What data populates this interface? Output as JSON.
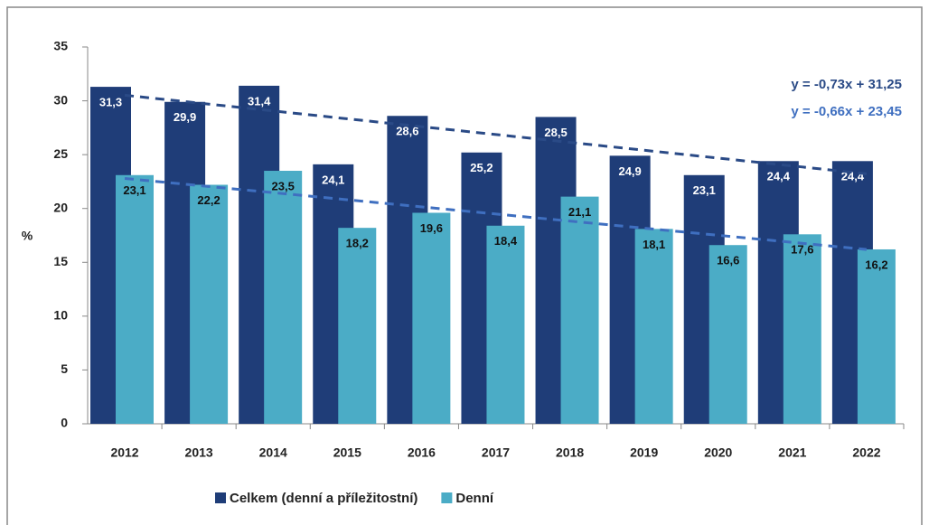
{
  "chart_data": {
    "type": "bar",
    "y_label": "%",
    "categories": [
      "2012",
      "2013",
      "2014",
      "2015",
      "2016",
      "2017",
      "2018",
      "2019",
      "2020",
      "2021",
      "2022"
    ],
    "series": [
      {
        "name": "Celkem (denní a příležitostní)",
        "color": "#1f3d78",
        "values": [
          31.3,
          29.9,
          31.4,
          24.1,
          28.6,
          25.2,
          28.5,
          24.9,
          23.1,
          24.4,
          24.4
        ],
        "value_labels": [
          "31,3",
          "29,9",
          "31,4",
          "24,1",
          "28,6",
          "25,2",
          "28,5",
          "24,9",
          "23,1",
          "24,4",
          "24,4"
        ]
      },
      {
        "name": "Denní",
        "color": "#4bacc6",
        "values": [
          23.1,
          22.2,
          23.5,
          18.2,
          19.6,
          18.4,
          21.1,
          18.1,
          16.6,
          17.6,
          16.2
        ],
        "value_labels": [
          "23,1",
          "22,2",
          "23,5",
          "18,2",
          "19,6",
          "18,4",
          "21,1",
          "18,1",
          "16,6",
          "17,6",
          "16,2"
        ]
      }
    ],
    "trendlines": [
      {
        "label": "y = -0,73x + 31,25",
        "slope": -0.73,
        "intercept": 31.25,
        "color": "#2a4a86"
      },
      {
        "label": "y = -0,66x + 23,45",
        "slope": -0.66,
        "intercept": 23.45,
        "color": "#3f6fc0"
      }
    ],
    "ylim": [
      0,
      35
    ],
    "yticks": [
      0,
      5,
      10,
      15,
      20,
      25,
      30,
      35
    ],
    "legend": "bottom"
  }
}
